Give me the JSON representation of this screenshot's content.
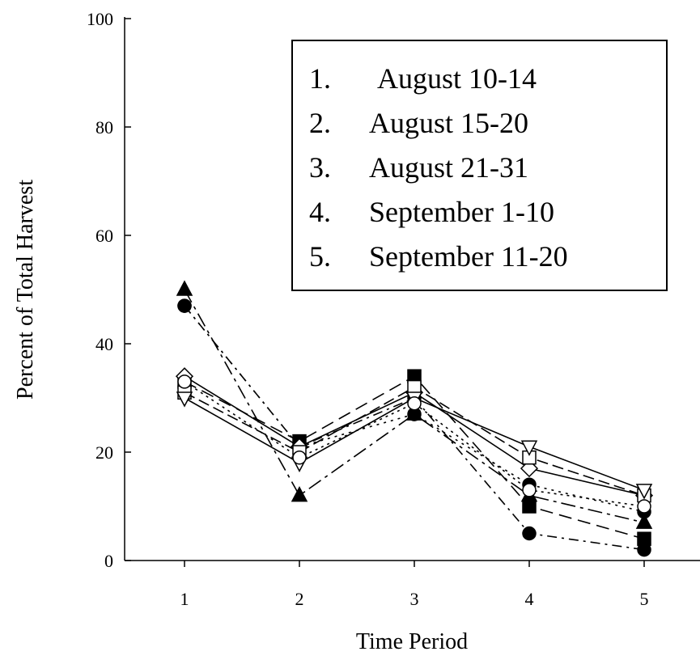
{
  "chart_data": {
    "type": "line",
    "xlabel": "Time Period",
    "ylabel": "Percent of Total Harvest",
    "x": [
      1,
      2,
      3,
      4,
      5
    ],
    "xticks": [
      "1",
      "2",
      "3",
      "4",
      "5"
    ],
    "yticks": [
      "0",
      "20",
      "40",
      "60",
      "80",
      "100"
    ],
    "xlim": [
      0.3,
      5.5
    ],
    "ylim": [
      0,
      100
    ],
    "grid": false,
    "legend": {
      "placement": "top-right",
      "entries": [
        {
          "num": "1.",
          "text": "August 10-14"
        },
        {
          "num": "2.",
          "text": "August 15-20"
        },
        {
          "num": "3.",
          "text": "August 21-31"
        },
        {
          "num": "4.",
          "text": "September 1-10"
        },
        {
          "num": "5.",
          "text": "September 11-20"
        }
      ]
    },
    "series": [
      {
        "marker": "triangle-up",
        "fill": "#000000",
        "dash": "18,6,4,6",
        "values": [
          50,
          12,
          27,
          12,
          7
        ]
      },
      {
        "marker": "circle",
        "fill": "#000000",
        "dash": "3,6",
        "values": [
          47,
          21,
          27,
          14,
          9
        ]
      },
      {
        "marker": "circle",
        "fill": "#000000",
        "dash": "12,6,3,6",
        "values": [
          47,
          21,
          30,
          5,
          2
        ]
      },
      {
        "marker": "square",
        "fill": "#000000",
        "dash": "16,8",
        "values": [
          33,
          22,
          34,
          10,
          4
        ]
      },
      {
        "marker": "diamond",
        "fill": "#ffffff",
        "dash": "",
        "values": [
          34,
          21,
          31,
          17,
          12
        ]
      },
      {
        "marker": "square",
        "fill": "#ffffff",
        "dash": "14,6",
        "values": [
          31,
          20,
          32,
          19,
          12
        ]
      },
      {
        "marker": "triangle-down",
        "fill": "#ffffff",
        "dash": "",
        "values": [
          30,
          18,
          30,
          21,
          13
        ]
      },
      {
        "marker": "circle",
        "fill": "#ffffff",
        "dash": "3,5",
        "values": [
          33,
          19,
          29,
          13,
          10
        ]
      }
    ]
  }
}
